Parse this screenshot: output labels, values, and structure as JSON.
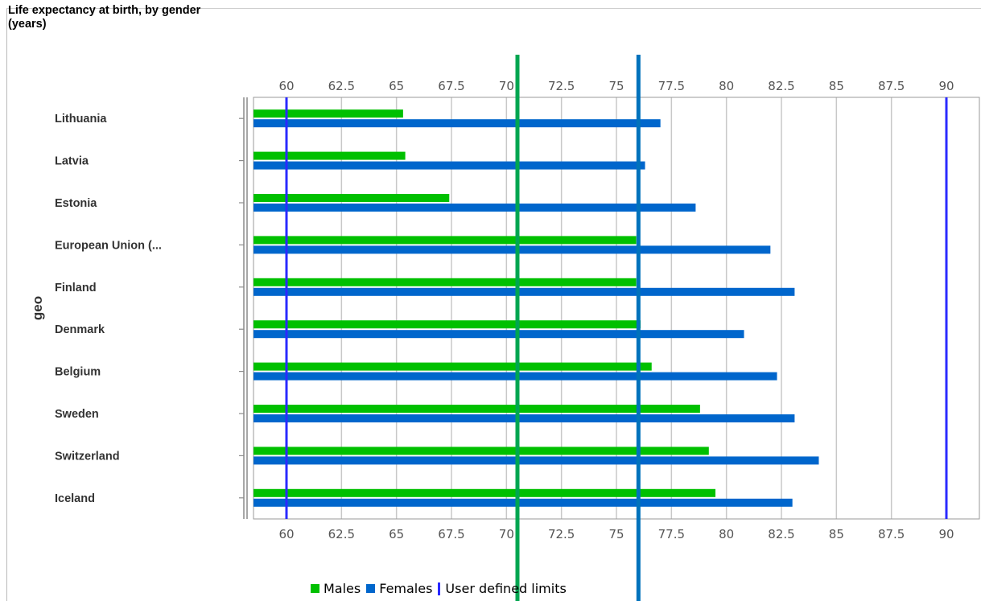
{
  "chart_data": {
    "type": "bar",
    "orientation": "horizontal",
    "title_line1": "Life expectancy at birth, by gender",
    "title_line2": "(years)",
    "ylabel": "geo",
    "categories": [
      "Lithuania",
      "Latvia",
      "Estonia",
      "European Union (...",
      "Finland",
      "Denmark",
      "Belgium",
      "Sweden",
      "Switzerland",
      "Iceland"
    ],
    "series": [
      {
        "name": "Males",
        "color": "#00c000",
        "values": [
          65.3,
          65.4,
          67.4,
          75.9,
          75.9,
          76.1,
          76.6,
          78.8,
          79.2,
          79.5
        ]
      },
      {
        "name": "Females",
        "color": "#0066cc",
        "values": [
          77.0,
          76.3,
          78.6,
          82.0,
          83.1,
          80.8,
          82.3,
          83.1,
          84.2,
          83.0
        ]
      }
    ],
    "user_limits_label": "User defined limits",
    "user_limits": [
      60,
      90
    ],
    "user_limits_color": "#2a2aff",
    "xlim": [
      58.5,
      91.5
    ],
    "xticks": [
      "60",
      "62.5",
      "65",
      "67.5",
      "70",
      "72.5",
      "75",
      "77.5",
      "80",
      "82.5",
      "85",
      "87.5",
      "90"
    ],
    "reference_lines": [
      {
        "value": 70.5,
        "color": "#00a651"
      },
      {
        "value": 76.0,
        "color": "#0072bc"
      }
    ],
    "grid": true,
    "legend_position": "bottom"
  }
}
